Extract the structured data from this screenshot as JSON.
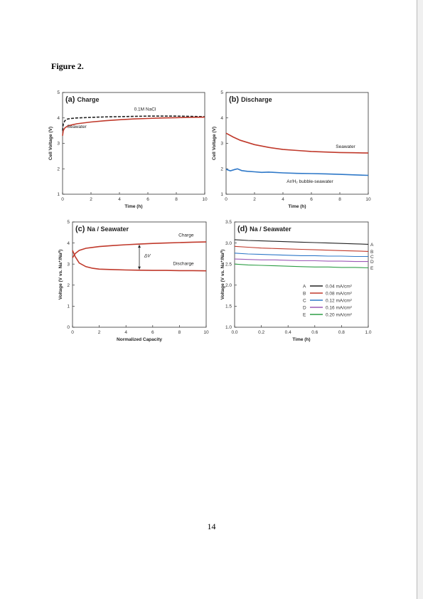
{
  "page": {
    "heading": "Figure 2.",
    "page_number": "14"
  },
  "colors": {
    "red": "#c0392b",
    "black": "#222222",
    "blue": "#2e78c8"
  },
  "chart_data": [
    {
      "id": "a",
      "type": "line",
      "panel_label": "(a)",
      "title": "Charge",
      "xlabel": "Time (h)",
      "ylabel": "Cell Voltage (V)",
      "xlim": [
        0,
        10
      ],
      "ylim": [
        1,
        5
      ],
      "xticks": [
        0,
        2,
        4,
        6,
        8,
        10
      ],
      "yticks": [
        1,
        2,
        3,
        4,
        5
      ],
      "series": [
        {
          "name": "0.1M NaCl",
          "color": "#222222",
          "dash": "4,2",
          "x": [
            0,
            0.05,
            0.15,
            0.3,
            0.6,
            1,
            2,
            3,
            4,
            5,
            6,
            7,
            8,
            9,
            10
          ],
          "y": [
            3.5,
            3.75,
            3.88,
            3.95,
            3.98,
            4.0,
            4.02,
            4.04,
            4.05,
            4.06,
            4.07,
            4.07,
            4.07,
            4.06,
            4.05
          ]
        },
        {
          "name": "Seawater",
          "color": "#c0392b",
          "dash": "",
          "x": [
            0,
            0.05,
            0.15,
            0.3,
            0.6,
            1,
            2,
            3,
            4,
            5,
            6,
            7,
            8,
            9,
            10
          ],
          "y": [
            3.3,
            3.5,
            3.6,
            3.66,
            3.72,
            3.77,
            3.84,
            3.89,
            3.93,
            3.96,
            3.98,
            4.0,
            4.01,
            4.02,
            4.03
          ]
        }
      ],
      "annotations": [
        {
          "text": "0.1M NaCl",
          "x": 5.8,
          "y": 4.28
        },
        {
          "text": "Seawater",
          "x": 1.0,
          "y": 3.6
        }
      ]
    },
    {
      "id": "b",
      "type": "line",
      "panel_label": "(b)",
      "title": "Discharge",
      "xlabel": "Time (h)",
      "ylabel": "Cell Voltage (V)",
      "xlim": [
        0,
        10
      ],
      "ylim": [
        1,
        5
      ],
      "xticks": [
        0,
        2,
        4,
        6,
        8,
        10
      ],
      "yticks": [
        1,
        2,
        3,
        4,
        5
      ],
      "series": [
        {
          "name": "Seawater",
          "color": "#c0392b",
          "dash": "",
          "x": [
            0,
            0.5,
            1,
            2,
            3,
            4,
            5,
            6,
            7,
            8,
            9,
            10
          ],
          "y": [
            3.4,
            3.25,
            3.12,
            2.95,
            2.84,
            2.76,
            2.72,
            2.68,
            2.66,
            2.64,
            2.63,
            2.62
          ]
        },
        {
          "name": "Ar/H₂ bubble-seawater",
          "color": "#2e78c8",
          "dash": "",
          "x": [
            0,
            0.3,
            0.6,
            0.8,
            1.1,
            1.5,
            2,
            2.5,
            3,
            4,
            5,
            6,
            7,
            8,
            9,
            10
          ],
          "y": [
            1.98,
            1.92,
            1.97,
            2.0,
            1.93,
            1.9,
            1.88,
            1.86,
            1.87,
            1.84,
            1.82,
            1.81,
            1.8,
            1.78,
            1.76,
            1.74
          ]
        }
      ],
      "annotations": [
        {
          "text": "Seawater",
          "x": 8.4,
          "y": 2.82
        },
        {
          "text": "Ar/H₂ bubble-seawater",
          "x": 5.9,
          "y": 1.45
        }
      ]
    },
    {
      "id": "c",
      "type": "line",
      "panel_label": "(c)",
      "title": "Na / Seawater",
      "xlabel": "Normalized Capacity",
      "ylabel": "Voltage (V vs. Na⁺/Na⁰)",
      "xlim": [
        0,
        10
      ],
      "ylim": [
        0,
        5
      ],
      "xticks": [
        0,
        2,
        4,
        6,
        8,
        10
      ],
      "yticks": [
        0,
        1,
        2,
        3,
        4,
        5
      ],
      "series": [
        {
          "name": "Charge",
          "color": "#c0392b",
          "dash": "",
          "x": [
            0,
            0.2,
            0.5,
            1,
            2,
            3,
            4,
            5,
            6,
            7,
            8,
            9,
            10
          ],
          "y": [
            3.3,
            3.5,
            3.65,
            3.75,
            3.83,
            3.88,
            3.92,
            3.95,
            3.98,
            4.0,
            4.02,
            4.04,
            4.05
          ]
        },
        {
          "name": "Discharge",
          "color": "#c0392b",
          "dash": "",
          "x": [
            0,
            0.2,
            0.5,
            1,
            1.5,
            2,
            3,
            4,
            5,
            6,
            7,
            8,
            9,
            10
          ],
          "y": [
            3.65,
            3.35,
            3.05,
            2.88,
            2.8,
            2.76,
            2.74,
            2.72,
            2.71,
            2.7,
            2.7,
            2.69,
            2.69,
            2.68
          ]
        }
      ],
      "annotations": [
        {
          "text": "Charge",
          "x": 8.5,
          "y": 4.3
        },
        {
          "text": "Discharge",
          "x": 8.3,
          "y": 2.95
        },
        {
          "text": "ΔV",
          "x": 5.6,
          "y": 3.33
        }
      ],
      "delta_v_at_x": 5
    },
    {
      "id": "d",
      "type": "line",
      "panel_label": "(d)",
      "title": "Na / Seawater",
      "xlabel": "Time (h)",
      "ylabel": "Voltage (V vs. Na⁺/Na⁰)",
      "xlim": [
        0,
        1
      ],
      "ylim": [
        1.0,
        3.5
      ],
      "xticks": [
        0.0,
        0.2,
        0.4,
        0.6,
        0.8,
        1.0
      ],
      "yticks": [
        1.0,
        1.5,
        2.0,
        2.5,
        3.0,
        3.5
      ],
      "series": [
        {
          "name": "0.04 mA/cm²",
          "letter": "A",
          "color": "#222222",
          "x": [
            0,
            0.1,
            0.2,
            0.3,
            0.4,
            0.5,
            0.6,
            0.7,
            0.8,
            0.9,
            1.0
          ],
          "y": [
            3.08,
            3.06,
            3.05,
            3.04,
            3.03,
            3.02,
            3.01,
            3.0,
            2.99,
            2.98,
            2.97
          ]
        },
        {
          "name": "0.08 mA/cm²",
          "letter": "B",
          "color": "#c0392b",
          "x": [
            0,
            0.1,
            0.2,
            0.3,
            0.4,
            0.5,
            0.6,
            0.7,
            0.8,
            0.9,
            1.0
          ],
          "y": [
            2.92,
            2.9,
            2.88,
            2.87,
            2.86,
            2.85,
            2.84,
            2.83,
            2.82,
            2.81,
            2.8
          ]
        },
        {
          "name": "0.12 mA/cm²",
          "letter": "C",
          "color": "#2e78c8",
          "x": [
            0,
            0.1,
            0.2,
            0.3,
            0.4,
            0.5,
            0.6,
            0.7,
            0.8,
            0.9,
            1.0
          ],
          "y": [
            2.76,
            2.74,
            2.73,
            2.72,
            2.71,
            2.7,
            2.7,
            2.69,
            2.69,
            2.68,
            2.68
          ]
        },
        {
          "name": "0.16 mA/cm²",
          "letter": "D",
          "color": "#9b59b6",
          "x": [
            0,
            0.1,
            0.2,
            0.3,
            0.4,
            0.5,
            0.6,
            0.7,
            0.8,
            0.9,
            1.0
          ],
          "y": [
            2.62,
            2.61,
            2.6,
            2.6,
            2.59,
            2.58,
            2.58,
            2.57,
            2.57,
            2.56,
            2.56
          ]
        },
        {
          "name": "0.20 mA/cm²",
          "letter": "E",
          "color": "#2e9e46",
          "x": [
            0,
            0.1,
            0.2,
            0.3,
            0.4,
            0.5,
            0.6,
            0.7,
            0.8,
            0.9,
            1.0
          ],
          "y": [
            2.5,
            2.48,
            2.47,
            2.46,
            2.45,
            2.44,
            2.43,
            2.43,
            2.42,
            2.42,
            2.41
          ]
        }
      ],
      "legend_placement": "lower-right"
    }
  ]
}
